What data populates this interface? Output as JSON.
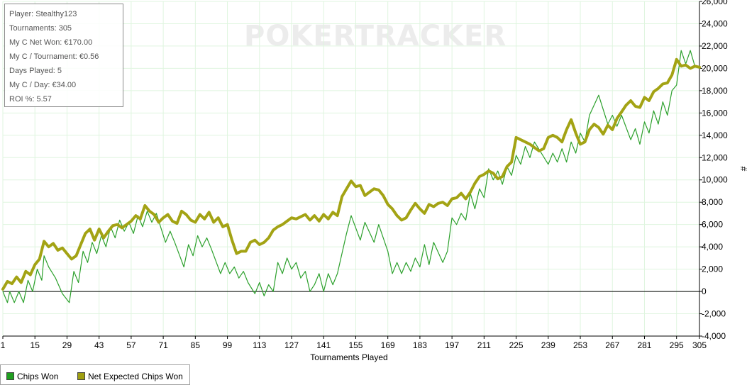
{
  "watermark": "POKERTRACKER",
  "stats": [
    "Player: Stealthy123",
    "Tournaments: 305",
    "My C Net Won: €170.00",
    "My C / Tournament: €0.56",
    "Days Played: 5",
    "My C / Day: €34.00",
    "ROI %: 5.57"
  ],
  "legend": [
    {
      "label": "Chips Won",
      "color": "#1f9e1f"
    },
    {
      "label": "Net Expected Chips Won",
      "color": "#9e9e10"
    }
  ],
  "colors": {
    "chips_won": "#2ca02c",
    "expected": "#a3a314",
    "grid": "#dff5df",
    "axis": "#000000"
  },
  "chart_data": {
    "type": "line",
    "xlabel": "Tournaments Played",
    "ylabel": "#",
    "xlim": [
      1,
      305
    ],
    "ylim": [
      -4000,
      26000
    ],
    "xticks": [
      1,
      15,
      29,
      43,
      57,
      71,
      85,
      99,
      113,
      127,
      141,
      155,
      169,
      183,
      197,
      211,
      225,
      239,
      253,
      267,
      281,
      295,
      305
    ],
    "yticks": [
      -4000,
      -2000,
      0,
      2000,
      4000,
      6000,
      8000,
      10000,
      12000,
      14000,
      16000,
      18000,
      20000,
      22000,
      24000,
      26000
    ],
    "ytick_labels": [
      "-4,000",
      "-2,000",
      "0",
      "2,000",
      "4,000",
      "6,000",
      "8,000",
      "10,000",
      "12,000",
      "14,000",
      "16,000",
      "18,000",
      "20,000",
      "22,000",
      "24,000",
      "26,000"
    ],
    "legend_position": "bottom-left",
    "series": [
      {
        "name": "Chips Won",
        "x": [
          1,
          3,
          4,
          6,
          8,
          10,
          12,
          14,
          16,
          18,
          19,
          21,
          24,
          27,
          30,
          32,
          34,
          36,
          38,
          40,
          42,
          44,
          46,
          48,
          50,
          52,
          54,
          56,
          58,
          60,
          62,
          64,
          66,
          68,
          72,
          74,
          76,
          80,
          82,
          84,
          86,
          88,
          90,
          92,
          96,
          98,
          100,
          102,
          104,
          106,
          108,
          111,
          113,
          115,
          117,
          119,
          121,
          123,
          125,
          127,
          129,
          131,
          133,
          135,
          137,
          139,
          141,
          143,
          145,
          147,
          151,
          153,
          157,
          159,
          163,
          165,
          169,
          171,
          173,
          175,
          177,
          179,
          181,
          183,
          185,
          187,
          189,
          193,
          195,
          197,
          199,
          201,
          203,
          205,
          207,
          209,
          211,
          213,
          215,
          217,
          219,
          221,
          223,
          225,
          227,
          229,
          231,
          233,
          239,
          241,
          243,
          245,
          247,
          249,
          251,
          253,
          255,
          257,
          261,
          265,
          267,
          269,
          271,
          275,
          277,
          279,
          281,
          283,
          285,
          287,
          289,
          291,
          293,
          295,
          297,
          299,
          301,
          303,
          305
        ],
        "y": [
          0,
          -1000,
          0,
          -1000,
          0,
          -1000,
          1000,
          0,
          2000,
          1000,
          3200,
          2200,
          1200,
          -200,
          -1000,
          1800,
          800,
          3600,
          2600,
          4400,
          3400,
          5000,
          4000,
          5800,
          4800,
          6400,
          5400,
          6200,
          5200,
          6800,
          5800,
          7200,
          6200,
          7000,
          4400,
          5400,
          4400,
          2200,
          4200,
          3200,
          5000,
          4000,
          4800,
          3800,
          1600,
          2600,
          1600,
          2200,
          1200,
          1800,
          800,
          -200,
          800,
          -400,
          600,
          0,
          2600,
          1600,
          3000,
          2000,
          2600,
          1200,
          1800,
          0,
          600,
          1600,
          0,
          1600,
          600,
          1600,
          5200,
          6800,
          4600,
          6200,
          4400,
          6000,
          3600,
          1600,
          2600,
          1600,
          2600,
          1800,
          3000,
          2200,
          4200,
          2400,
          4400,
          2600,
          3600,
          6600,
          6000,
          7000,
          6400,
          8800,
          7400,
          9200,
          8400,
          11000,
          10000,
          10800,
          9600,
          11200,
          10400,
          12200,
          11400,
          13000,
          12000,
          13400,
          11400,
          12400,
          11600,
          12800,
          11600,
          13400,
          12400,
          14200,
          13400,
          15800,
          17600,
          15000,
          15800,
          14800,
          15800,
          13600,
          14600,
          13200,
          15200,
          14200,
          16200,
          15000,
          17000,
          15800,
          18000,
          18500,
          21600,
          20400,
          21600,
          20200,
          20000
        ]
      },
      {
        "name": "Net Expected Chips Won",
        "x": [
          1,
          3,
          5,
          7,
          9,
          11,
          13,
          15,
          17,
          19,
          21,
          23,
          25,
          27,
          29,
          31,
          33,
          35,
          37,
          39,
          41,
          43,
          45,
          47,
          49,
          51,
          53,
          55,
          57,
          59,
          61,
          63,
          65,
          67,
          69,
          71,
          73,
          75,
          77,
          79,
          81,
          83,
          85,
          87,
          89,
          91,
          93,
          95,
          97,
          99,
          101,
          103,
          105,
          107,
          109,
          111,
          113,
          115,
          117,
          119,
          121,
          123,
          125,
          127,
          129,
          131,
          133,
          135,
          137,
          139,
          141,
          143,
          145,
          147,
          149,
          151,
          153,
          155,
          157,
          159,
          161,
          163,
          165,
          167,
          169,
          171,
          173,
          175,
          177,
          179,
          181,
          183,
          185,
          187,
          189,
          191,
          193,
          195,
          197,
          199,
          201,
          203,
          205,
          207,
          209,
          211,
          213,
          215,
          217,
          219,
          221,
          223,
          225,
          227,
          229,
          231,
          233,
          235,
          237,
          239,
          241,
          243,
          245,
          247,
          249,
          251,
          253,
          255,
          257,
          259,
          261,
          263,
          265,
          267,
          269,
          271,
          273,
          275,
          277,
          279,
          281,
          283,
          285,
          287,
          289,
          291,
          293,
          295,
          297,
          299,
          301,
          303,
          305
        ],
        "y": [
          200,
          900,
          700,
          1300,
          800,
          1800,
          1500,
          2400,
          2900,
          4500,
          4000,
          4300,
          3700,
          3900,
          3400,
          2900,
          3200,
          4200,
          5200,
          5600,
          4600,
          5600,
          4800,
          5400,
          5900,
          6000,
          5700,
          6000,
          6300,
          6800,
          6500,
          7700,
          7200,
          6900,
          6200,
          6600,
          6900,
          6300,
          6100,
          7200,
          6900,
          6400,
          6200,
          6900,
          6500,
          7100,
          6200,
          6600,
          5800,
          6000,
          4600,
          3400,
          3600,
          3600,
          4400,
          4600,
          4200,
          4400,
          4800,
          5500,
          5800,
          6000,
          6300,
          6600,
          6500,
          6700,
          6900,
          6400,
          6800,
          6300,
          6900,
          6500,
          7100,
          6800,
          8500,
          9200,
          9900,
          9400,
          9500,
          8600,
          8900,
          9200,
          9100,
          8600,
          7800,
          7400,
          6800,
          6400,
          6600,
          7300,
          7900,
          7400,
          7000,
          7800,
          7600,
          7900,
          8000,
          7700,
          8300,
          8400,
          8800,
          8300,
          8900,
          9700,
          10300,
          10500,
          10800,
          10600,
          10100,
          10300,
          11200,
          11600,
          13800,
          13600,
          13400,
          13200,
          12900,
          12600,
          12800,
          13800,
          14000,
          13800,
          13400,
          14500,
          15400,
          14200,
          13200,
          13400,
          14500,
          15000,
          14700,
          14100,
          14900,
          14500,
          15500,
          16100,
          16700,
          17100,
          16600,
          16500,
          17400,
          17100,
          17900,
          18200,
          18600,
          18700,
          19400,
          20800,
          20200,
          20300,
          20000,
          20200,
          20100
        ]
      }
    ]
  }
}
